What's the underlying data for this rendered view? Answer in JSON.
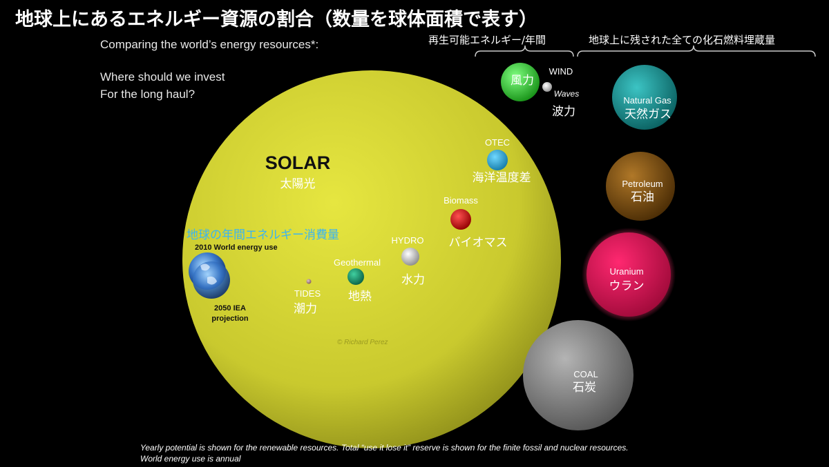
{
  "title": "地球上にあるエネルギー資源の割合（数量を球体面積で表す）",
  "subtitle": "Comparing the world’s energy resources*:",
  "question": [
    "Where should we invest",
    "For the long haul?"
  ],
  "group_renewable": "再生可能エネルギー/年間",
  "group_fossil": "地球上に残された全ての化石燃料埋蔵量",
  "solar": {
    "en": "SOLAR",
    "jp": "太陽光",
    "color": "#cccc33"
  },
  "world_use": {
    "jp": "地球の年間エネルギー消費量",
    "en2010": "2010 World energy use",
    "en2050": [
      "2050 IEA",
      "projection"
    ],
    "jp_color": "#3ab4f2"
  },
  "watermark": "© Richard Perez",
  "resources": {
    "otec": {
      "en": "OTEC",
      "jp": "海洋温度差",
      "color": "#2aa7d8"
    },
    "biomass": {
      "en": "Biomass",
      "jp": "バイオマス",
      "color": "#d01010"
    },
    "hydro": {
      "en": "HYDRO",
      "jp": "水力",
      "color": "#e4e4e4"
    },
    "geothermal": {
      "en": "Geothermal",
      "jp": "地熱",
      "color": "#16a077"
    },
    "tides": {
      "en": "TIDES",
      "jp": "潮力",
      "color": "#b09090"
    },
    "wind": {
      "en": "WIND",
      "jp": "風力",
      "color": "#33cc33"
    },
    "waves": {
      "en": "Waves",
      "jp": "波力",
      "color": "#d8d8d8"
    },
    "natural_gas": {
      "en": "Natural Gas",
      "jp": "天然ガス",
      "color": "#1a9a9a"
    },
    "petroleum": {
      "en": "Petroleum",
      "jp": "石油",
      "color": "#8a5a10"
    },
    "uranium": {
      "en": "Uranium",
      "jp": "ウラン",
      "color": "#e0145a"
    },
    "coal": {
      "en": "COAL",
      "jp": "石炭",
      "color": "#8a8a8a"
    }
  },
  "footnote": [
    "Yearly potential is shown for the renewable resources. Total “use it lose it” reserve is shown for the finite fossil and nuclear resources.",
    "World energy use is annual"
  ]
}
